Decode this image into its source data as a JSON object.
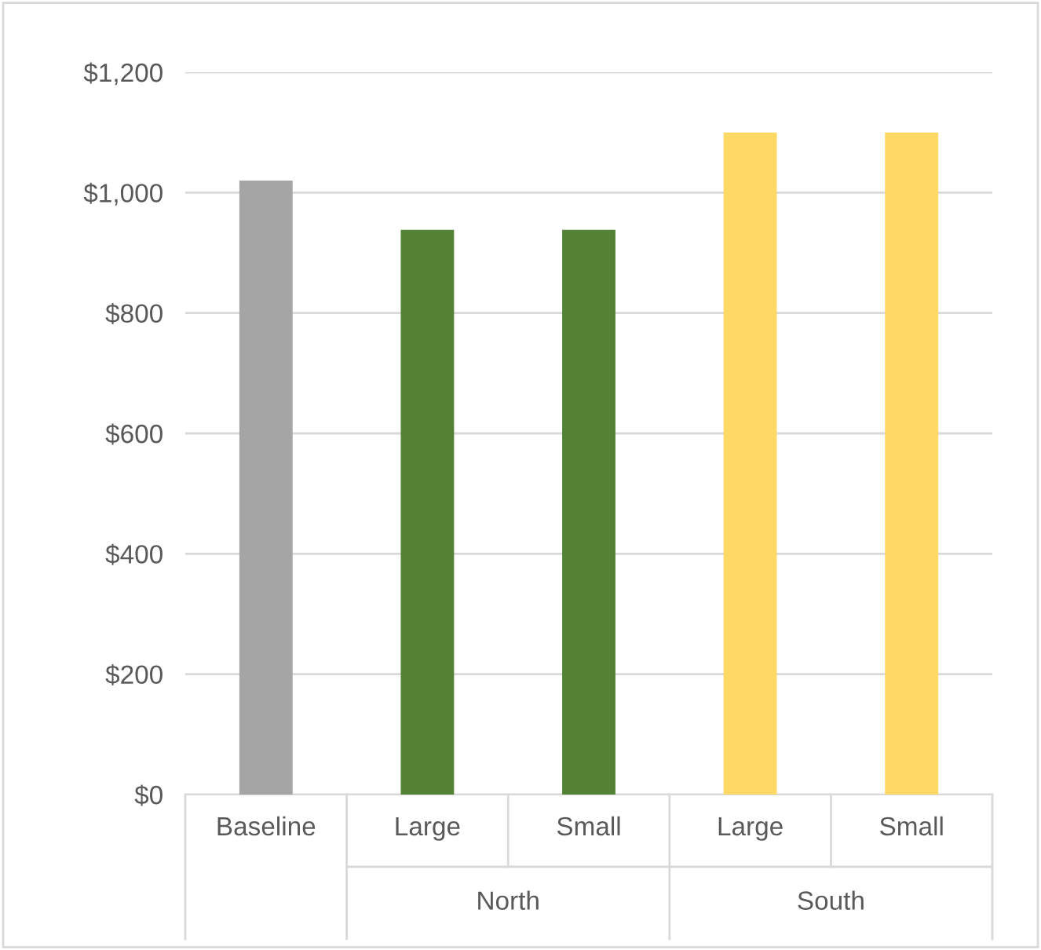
{
  "chart_data": {
    "type": "bar",
    "categories": [
      "Baseline",
      "Large",
      "Small",
      "Large",
      "Small"
    ],
    "values": [
      1020,
      938,
      938,
      1100,
      1100
    ],
    "colors": [
      "#a5a5a5",
      "#548235",
      "#548235",
      "#ffd966",
      "#ffd966"
    ],
    "ylim": [
      0,
      1200
    ],
    "yticks": [
      {
        "value": 0,
        "label": "$0"
      },
      {
        "value": 200,
        "label": "$200"
      },
      {
        "value": 400,
        "label": "$400"
      },
      {
        "value": 600,
        "label": "$600"
      },
      {
        "value": 800,
        "label": "$800"
      },
      {
        "value": 1000,
        "label": "$1,000"
      },
      {
        "value": 1200,
        "label": "$1,200"
      }
    ],
    "grid": "y",
    "annotations": [
      "North",
      "South"
    ]
  }
}
